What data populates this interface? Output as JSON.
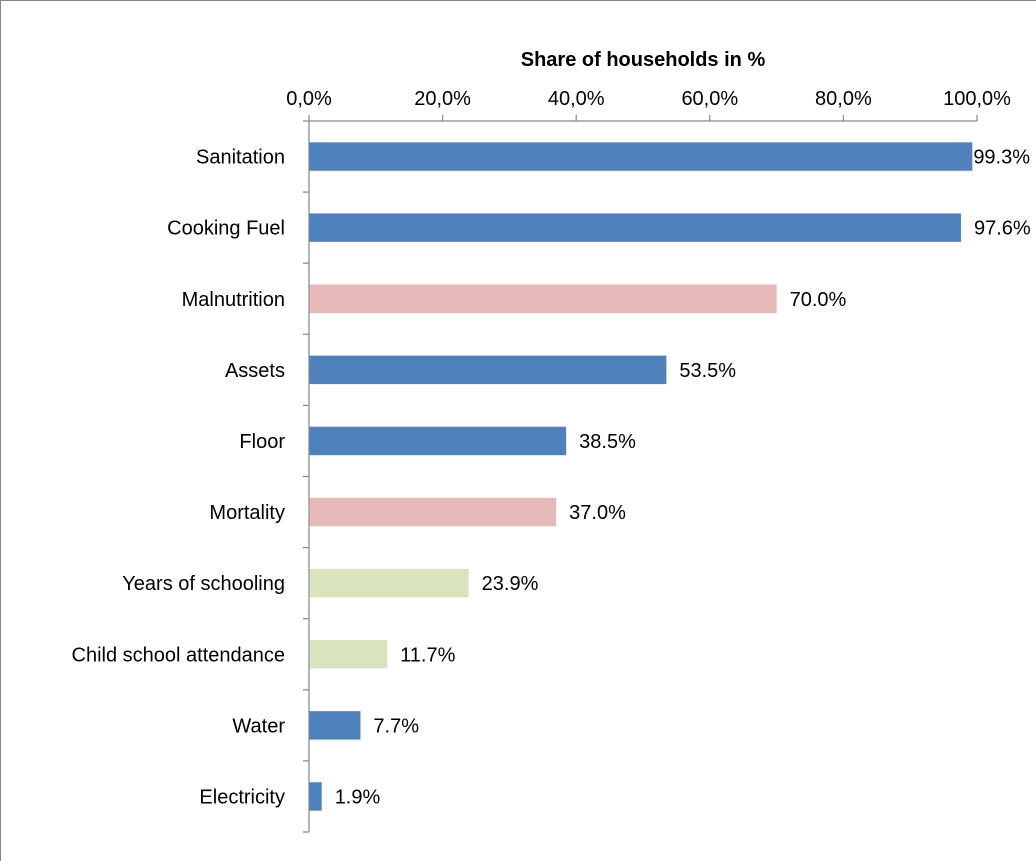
{
  "chart_data": {
    "type": "bar",
    "orientation": "horizontal",
    "xlabel": "Share of households in %",
    "ylabel": "",
    "xlim": [
      0,
      100
    ],
    "x_ticks": [
      "0,0%",
      "20,0%",
      "40,0%",
      "60,0%",
      "80,0%",
      "100,0%"
    ],
    "x_axis_position": "top",
    "grid": false,
    "legend": "none",
    "categories": [
      "Sanitation",
      "Cooking Fuel",
      "Malnutrition",
      "Assets",
      "Floor",
      "Mortality",
      "Years of schooling",
      "Child school attendance",
      "Water",
      "Electricity"
    ],
    "values": [
      99.3,
      97.6,
      70.0,
      53.5,
      38.5,
      37.0,
      23.9,
      11.7,
      7.7,
      1.9
    ],
    "data_labels": [
      "99.3%",
      "97.6%",
      "70.0%",
      "53.5%",
      "38.5%",
      "37.0%",
      "23.9%",
      "11.7%",
      "7.7%",
      "1.9%"
    ],
    "bar_colors": [
      "#4f81bd",
      "#4f81bd",
      "#e6b9b8",
      "#4f81bd",
      "#4f81bd",
      "#e6b9b8",
      "#d7e4bd",
      "#d7e4bd",
      "#4f81bd",
      "#4f81bd"
    ]
  }
}
